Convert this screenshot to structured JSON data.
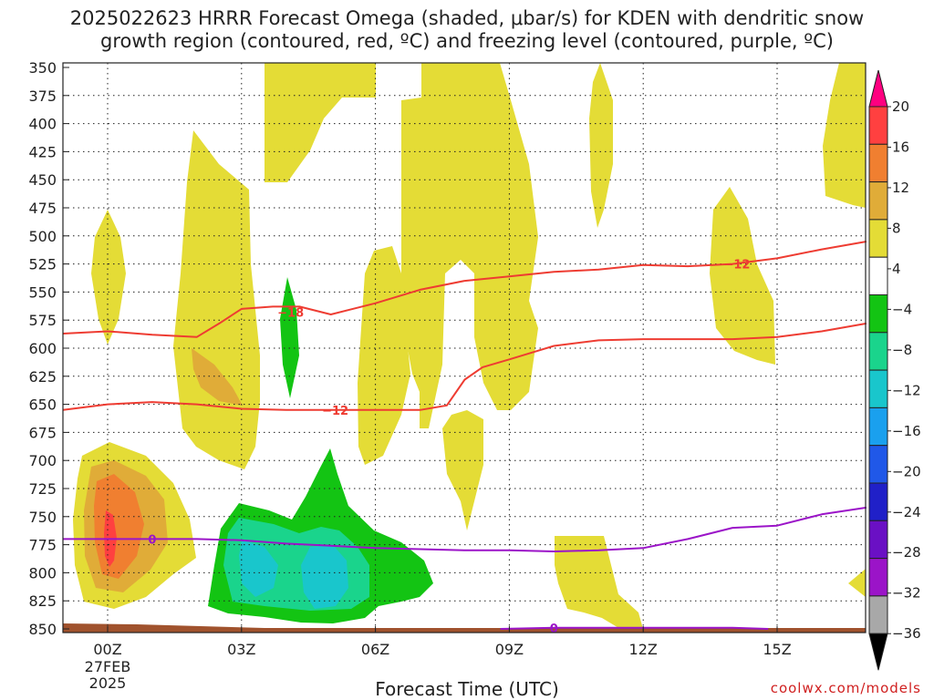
{
  "chart_data": {
    "type": "heatmap",
    "title_line1": "2025022623 HRRR Forecast Omega (shaded, μbar/s) for KDEN with dendritic snow",
    "title_line2": "growth region (contoured, red, ºC) and freezing level (contoured, purple, ºC)",
    "xlabel": "Forecast Time (UTC)",
    "ylabel": "",
    "y_ticks": [
      350,
      375,
      400,
      425,
      450,
      475,
      500,
      525,
      550,
      575,
      600,
      625,
      650,
      675,
      700,
      725,
      750,
      775,
      800,
      825,
      850
    ],
    "x_ticks": [
      {
        "hour": 0,
        "label": "00Z",
        "date": "27FEB",
        "year": "2025"
      },
      {
        "hour": 3,
        "label": "03Z"
      },
      {
        "hour": 6,
        "label": "06Z"
      },
      {
        "hour": 9,
        "label": "09Z"
      },
      {
        "hour": 12,
        "label": "12Z"
      },
      {
        "hour": 15,
        "label": "15Z"
      }
    ],
    "xlim_hours": [
      -1,
      17
    ],
    "ylim_hpa": [
      350,
      850
    ],
    "grid": true,
    "colorbar": {
      "levels": [
        "20",
        "16",
        "12",
        "8",
        "4",
        "−4",
        "−8",
        "−12",
        "−16",
        "−20",
        "−24",
        "−28",
        "−32",
        "−36"
      ],
      "colors": [
        "#ff0080",
        "#ff4040",
        "#f07f30",
        "#e0ac38",
        "#e4dc36",
        "#ffffff",
        "#13c413",
        "#1ad48c",
        "#19c6cc",
        "#1aa0ee",
        "#2058e8",
        "#2020c8",
        "#6a10c4",
        "#9b14c8",
        "#a8a8a8",
        "#000000"
      ]
    },
    "red_contours": [
      {
        "label": "−12",
        "label_hour": 14.1,
        "points": [
          [
            -1,
            587
          ],
          [
            0,
            585
          ],
          [
            1,
            588
          ],
          [
            2,
            590
          ],
          [
            2.5,
            578
          ],
          [
            3,
            565
          ],
          [
            3.7,
            563
          ],
          [
            4.3,
            563
          ],
          [
            5,
            570
          ],
          [
            6,
            560
          ],
          [
            7,
            548
          ],
          [
            8,
            540
          ],
          [
            9,
            536
          ],
          [
            10,
            532
          ],
          [
            11,
            530
          ],
          [
            12,
            526
          ],
          [
            13,
            527
          ],
          [
            14,
            525
          ],
          [
            15,
            520
          ],
          [
            16,
            512
          ],
          [
            17,
            505
          ]
        ]
      },
      {
        "label": "−12",
        "label_hour": 5.1,
        "points": [
          [
            -1,
            655
          ],
          [
            0,
            650
          ],
          [
            1,
            648
          ],
          [
            2,
            650
          ],
          [
            3,
            654
          ],
          [
            4,
            655
          ],
          [
            5,
            655
          ],
          [
            6,
            655
          ],
          [
            7,
            655
          ],
          [
            7.6,
            651
          ],
          [
            8,
            628
          ],
          [
            8.4,
            617
          ],
          [
            9,
            610
          ],
          [
            10,
            598
          ],
          [
            11,
            593
          ],
          [
            12,
            592
          ],
          [
            13,
            592
          ],
          [
            14,
            592
          ],
          [
            15,
            590
          ],
          [
            16,
            585
          ],
          [
            17,
            578
          ]
        ]
      },
      {
        "label": "−18",
        "label_hour": 4.1,
        "points": []
      }
    ],
    "purple_contours": [
      {
        "label": "0",
        "label_hour": 1,
        "points": [
          [
            -1,
            770
          ],
          [
            0,
            770
          ],
          [
            1,
            770
          ],
          [
            2,
            770
          ],
          [
            3,
            771
          ],
          [
            4,
            774
          ],
          [
            5,
            776
          ],
          [
            6,
            778
          ],
          [
            7,
            779
          ],
          [
            8,
            780
          ],
          [
            9,
            780
          ],
          [
            10,
            781
          ],
          [
            11,
            780
          ],
          [
            12,
            778
          ],
          [
            13,
            770
          ],
          [
            14,
            760
          ],
          [
            15,
            758
          ],
          [
            16,
            748
          ],
          [
            17,
            742
          ]
        ]
      },
      {
        "label": "0",
        "label_hour": 10,
        "points": [
          [
            8.8,
            850
          ],
          [
            10,
            849
          ],
          [
            12,
            849
          ],
          [
            14,
            849
          ],
          [
            14.8,
            850
          ]
        ]
      }
    ]
  }
}
